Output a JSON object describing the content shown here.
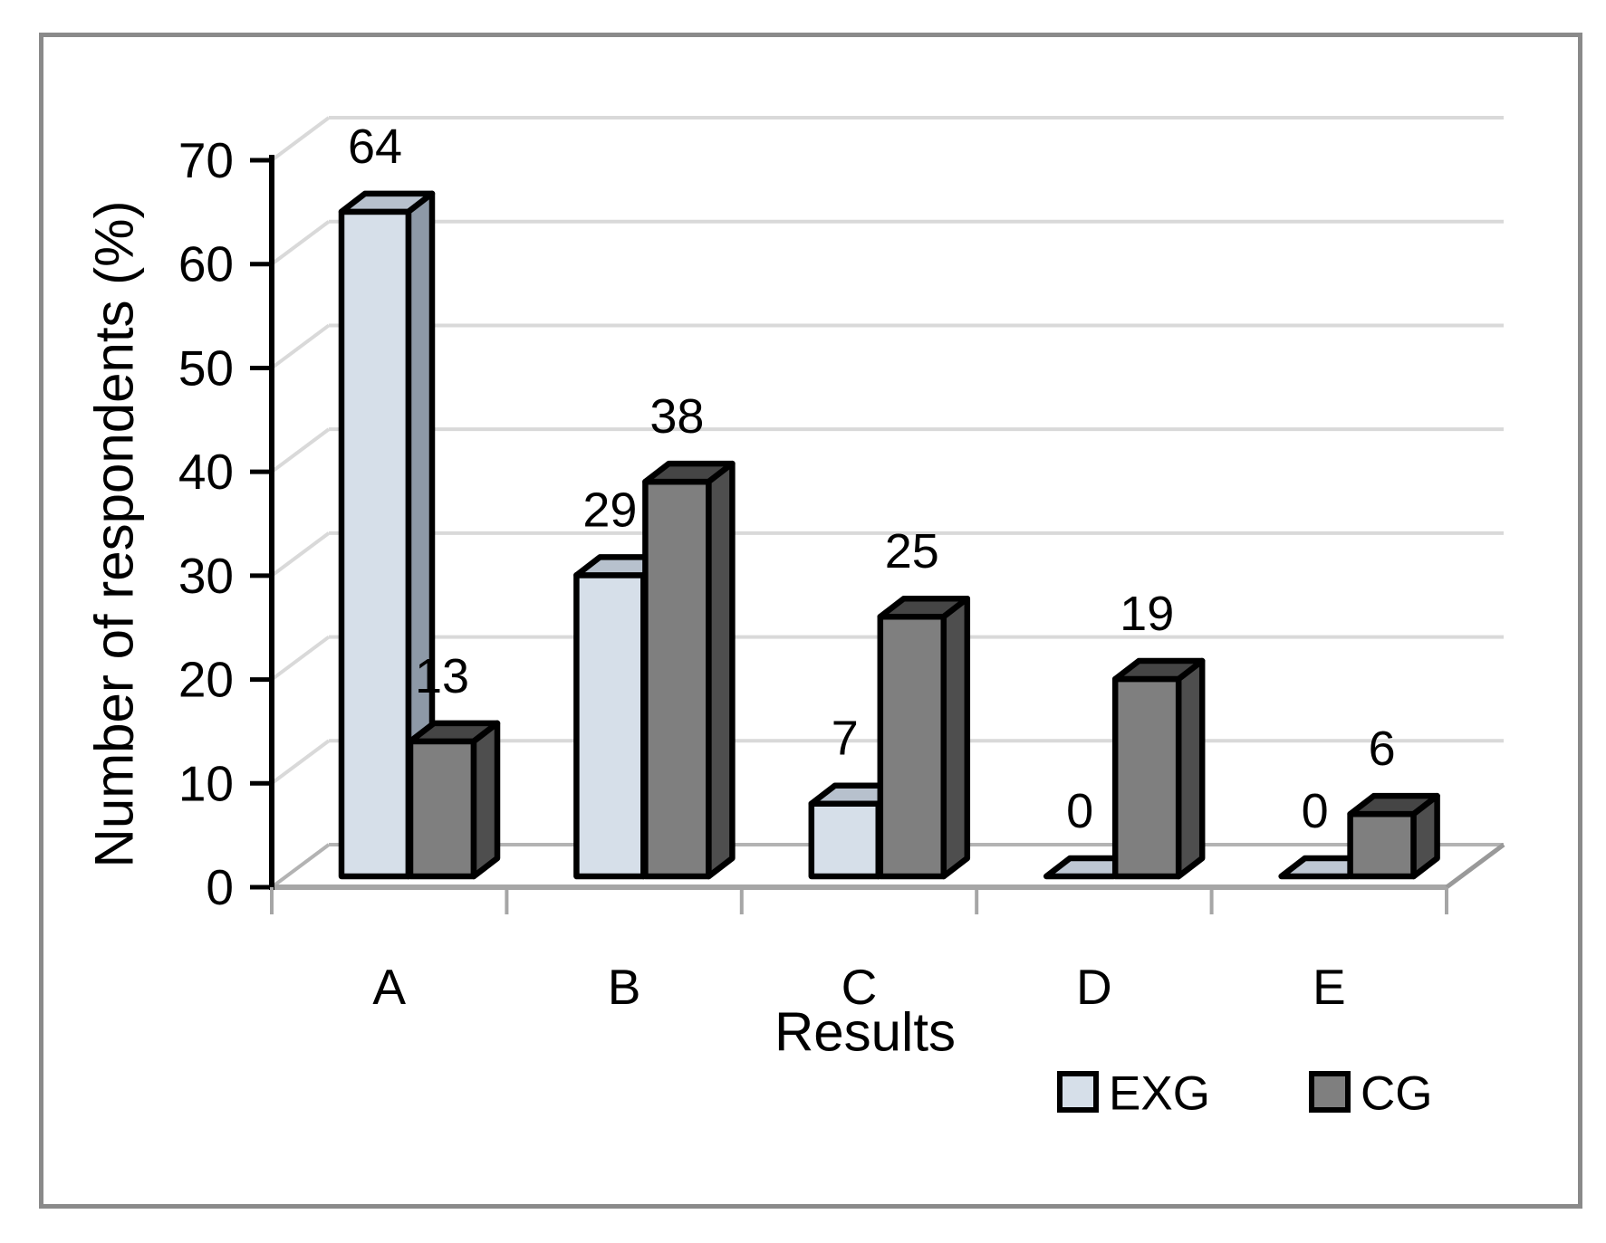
{
  "figure": {
    "background": "#ffffff",
    "border_color": "#8a8a8a"
  },
  "chart_data": {
    "type": "bar",
    "subtype": "3d-clustered-column",
    "title": "",
    "xlabel": "Results",
    "ylabel": "Number of respondents (%)",
    "categories": [
      "A",
      "B",
      "C",
      "D",
      "E"
    ],
    "series": [
      {
        "name": "EXG",
        "values": [
          64,
          29,
          7,
          0,
          0
        ],
        "data_labels": [
          "64",
          "29",
          "7",
          "0",
          "0"
        ],
        "color": "#d6dfe9",
        "top_color": "#b7c1cd",
        "side_color": "#8d99a7",
        "zero_color": "#bec7d3"
      },
      {
        "name": "CG",
        "values": [
          13,
          38,
          25,
          19,
          6
        ],
        "data_labels": [
          "13",
          "38",
          "25",
          "19",
          "6"
        ],
        "color": "#7f7f7f",
        "top_color": "#454545",
        "side_color": "#4e4e4e",
        "zero_color": "#9aa0a8"
      }
    ],
    "ylim": [
      0,
      70
    ],
    "ytick_step": 10,
    "yticks": [
      "0",
      "10",
      "20",
      "30",
      "40",
      "50",
      "60",
      "70"
    ],
    "grid": true,
    "legend_position": "bottom-right",
    "colors": {
      "gridline": "#d9d9d9",
      "floor_front": "#a6a6a6",
      "floor_back": "#b3b3b3",
      "floor_edge": "#999999",
      "axis": "#000000",
      "bar_outline": "#000000",
      "category_tick": "#a6a6a6"
    }
  }
}
